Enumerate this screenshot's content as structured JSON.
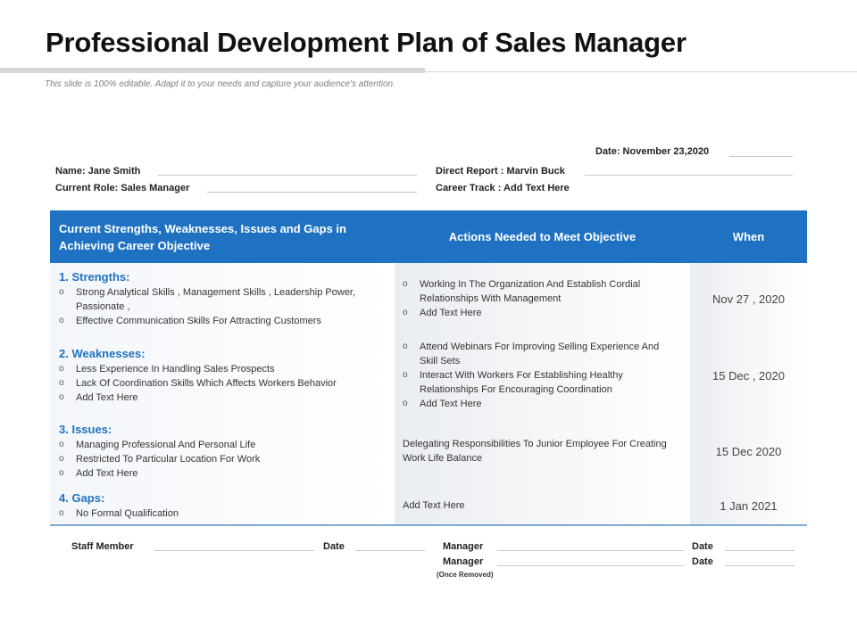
{
  "title": "Professional Development Plan of Sales Manager",
  "subtitle": "This slide is 100% editable. Adapt it to your needs and capture your audience's attention.",
  "info": {
    "date": "Date: November 23,2020",
    "name": "Name: Jane Smith",
    "direct_report": "Direct Report : Marvin  Buck",
    "current_role": "Current Role: Sales Manager",
    "career_track": "Career Track : Add Text Here"
  },
  "table": {
    "headers": {
      "col1": "Current Strengths, Weaknesses, Issues and Gaps in Achieving Career Objective",
      "col2": "Actions Needed to Meet Objective",
      "col3": "When"
    },
    "rows": [
      {
        "heading": "1. Strengths:",
        "items": [
          "Strong Analytical Skills , Management  Skills , Leadership  Power,  Passionate ,",
          "Effective Communication Skills For Attracting Customers"
        ],
        "actions": [
          "Working In The Organization And Establish Cordial Relationships With Management",
          "Add Text Here"
        ],
        "when": "Nov 27 , 2020"
      },
      {
        "heading": "2. Weaknesses:",
        "items": [
          "Less Experience In Handling Sales Prospects",
          "Lack Of Coordination Skills Which Affects Workers  Behavior",
          "Add Text Here"
        ],
        "actions": [
          "Attend Webinars  For Improving Selling Experience And Skill Sets",
          "Interact With Workers  For Establishing Healthy Relationships For Encouraging Coordination",
          "Add Text Here"
        ],
        "when": "15 Dec , 2020"
      },
      {
        "heading": "3. Issues:",
        "items": [
          "Managing Professional  And Personal  Life",
          "Restricted To Particular  Location For Work",
          "Add Text Here"
        ],
        "action_text": "Delegating Responsibilities  To Junior Employee  For Creating Work  Life Balance",
        "when": "15 Dec 2020"
      },
      {
        "heading": "4. Gaps:",
        "items": [
          "No Formal Qualification"
        ],
        "action_text": "Add Text Here",
        "when": "1 Jan 2021"
      }
    ]
  },
  "signatures": {
    "staff_member": "Staff Member",
    "date": "Date",
    "manager": "Manager",
    "manager2": "Manager",
    "once_removed": "(Once Removed)"
  },
  "bullet_marker": "o"
}
